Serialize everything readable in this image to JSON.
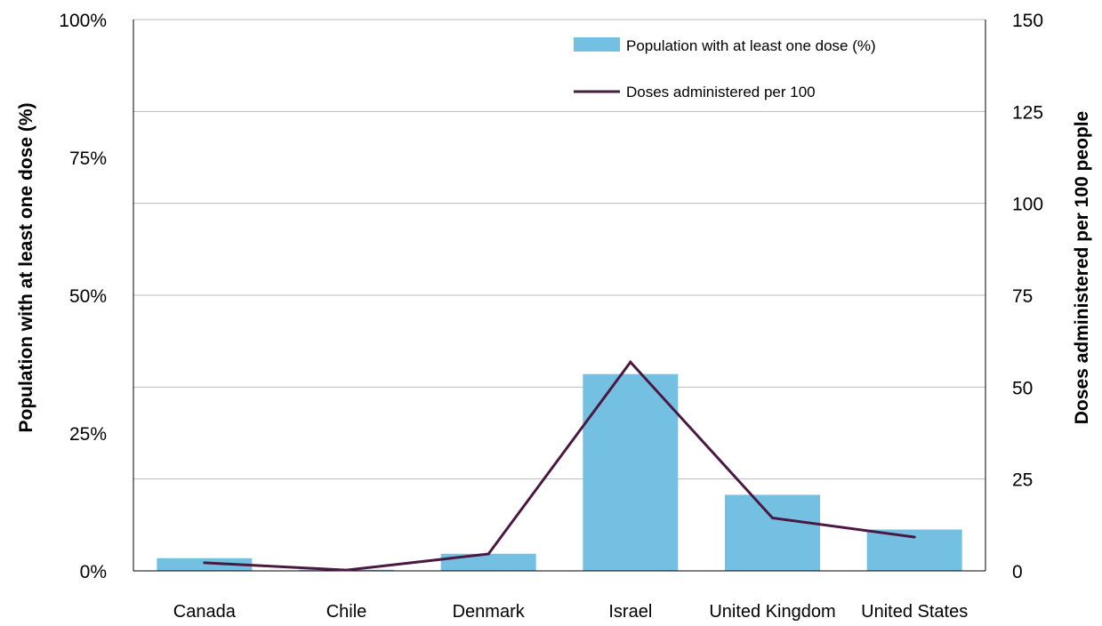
{
  "chart_data": {
    "type": "bar",
    "categories": [
      "Canada",
      "Chile",
      "Denmark",
      "Israel",
      "United Kingdom",
      "United States"
    ],
    "series": [
      {
        "name": "Population with at least one dose (%)",
        "type": "bar",
        "axis": "left",
        "values": [
          2.3,
          0.2,
          3.1,
          35.7,
          13.8,
          7.5
        ],
        "color": "#74c0e2"
      },
      {
        "name": "Doses administered per 100",
        "type": "line",
        "axis": "right",
        "values": [
          2.2,
          0.2,
          4.6,
          56.8,
          14.4,
          9.2
        ],
        "color": "#4a1942"
      }
    ],
    "ylabel": "Population with at least one dose (%)",
    "ylabel_right": "Doses administered per 100 people",
    "ylim": [
      0,
      100
    ],
    "ylim_right": [
      0,
      150
    ],
    "y_ticks": [
      "0%",
      "25%",
      "50%",
      "75%",
      "100%"
    ],
    "y_ticks_right": [
      "0",
      "25",
      "50",
      "75",
      "100",
      "125",
      "150"
    ],
    "grid": true,
    "legend_position": "top-right"
  }
}
